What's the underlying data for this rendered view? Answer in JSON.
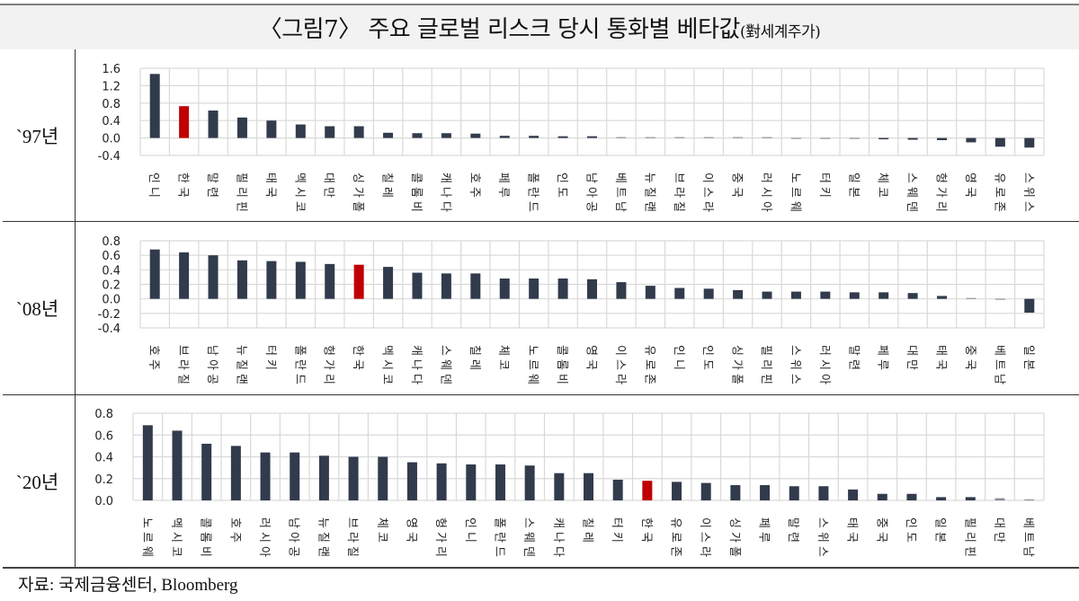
{
  "title": {
    "main": "〈그림7〉 주요 글로벌 리스크 당시 통화별 베타값",
    "sub": "(對세계주가)"
  },
  "colors": {
    "bar": "#323b4c",
    "highlight": "#c00000",
    "grid": "#d9d9d9",
    "axis_text": "#222222"
  },
  "source": "자료: 국제금융센터, Bloomberg",
  "chart_data": [
    {
      "type": "bar",
      "row_label": "`97년",
      "title": "1997",
      "ylim": [
        -0.4,
        1.6
      ],
      "yticks": [
        1.6,
        1.2,
        0.8,
        0.4,
        0.0,
        -0.4
      ],
      "ytick_labels": [
        "1.6",
        "1.2",
        "0.8",
        "0.4",
        "0.0",
        "-0.4"
      ],
      "grid": true,
      "highlight": "한국",
      "categories": [
        "인니",
        "한국",
        "말련",
        "필리핀",
        "태국",
        "멕시코",
        "대만",
        "싱가폴",
        "칠레",
        "콜롬비",
        "캐나다",
        "호주",
        "페루",
        "폴란드",
        "인도",
        "남아공",
        "베트남",
        "뉴질랜",
        "브라질",
        "이스라",
        "중국",
        "러시아",
        "노르웨",
        "터키",
        "일본",
        "체코",
        "스웨덴",
        "헝가리",
        "영국",
        "유로존",
        "스위스"
      ],
      "values": [
        1.47,
        0.73,
        0.63,
        0.47,
        0.4,
        0.31,
        0.27,
        0.27,
        0.12,
        0.11,
        0.11,
        0.1,
        0.05,
        0.05,
        0.04,
        0.04,
        0.02,
        0.02,
        0.0,
        0.0,
        0.0,
        0.0,
        -0.01,
        -0.01,
        -0.02,
        -0.03,
        -0.04,
        -0.05,
        -0.1,
        -0.2,
        -0.22
      ]
    },
    {
      "type": "bar",
      "row_label": "`08년",
      "title": "2008",
      "ylim": [
        -0.4,
        0.8
      ],
      "yticks": [
        0.8,
        0.6,
        0.4,
        0.2,
        0.0,
        -0.2,
        -0.4
      ],
      "ytick_labels": [
        "0.8",
        "0.6",
        "0.4",
        "0.2",
        "0.0",
        "-0.2",
        "-0.4"
      ],
      "grid": true,
      "highlight": "한국",
      "categories": [
        "호주",
        "브라질",
        "남아공",
        "뉴질랜",
        "터키",
        "폴란드",
        "헝가리",
        "한국",
        "멕시코",
        "캐나다",
        "스웨덴",
        "칠레",
        "체코",
        "노르웨",
        "콜롬비",
        "영국",
        "이스라",
        "유로존",
        "인니",
        "인도",
        "싱가폴",
        "필리핀",
        "스위스",
        "러시아",
        "말련",
        "페루",
        "대만",
        "태국",
        "중국",
        "베트남",
        "일본"
      ],
      "values": [
        0.68,
        0.64,
        0.6,
        0.53,
        0.52,
        0.51,
        0.48,
        0.47,
        0.44,
        0.36,
        0.35,
        0.35,
        0.28,
        0.28,
        0.28,
        0.27,
        0.23,
        0.18,
        0.15,
        0.14,
        0.12,
        0.1,
        0.1,
        0.1,
        0.09,
        0.09,
        0.08,
        0.04,
        0.0,
        -0.01,
        -0.19
      ]
    },
    {
      "type": "bar",
      "row_label": "`20년",
      "title": "2020",
      "ylim": [
        0.0,
        0.8
      ],
      "yticks": [
        0.8,
        0.6,
        0.4,
        0.2,
        0.0
      ],
      "ytick_labels": [
        "0.8",
        "0.6",
        "0.4",
        "0.2",
        "0.0"
      ],
      "grid": true,
      "highlight": "한국",
      "categories": [
        "노르웨",
        "멕시코",
        "콜롬비",
        "호주",
        "러시아",
        "남아공",
        "뉴질랜",
        "브라질",
        "체코",
        "영국",
        "헝가리",
        "인니",
        "폴란드",
        "스웨덴",
        "캐나다",
        "칠레",
        "터키",
        "한국",
        "유로존",
        "이스라",
        "싱가폴",
        "페루",
        "말련",
        "스위스",
        "태국",
        "중국",
        "인도",
        "일본",
        "필리핀",
        "대만",
        "베트남"
      ],
      "values": [
        0.69,
        0.64,
        0.52,
        0.5,
        0.44,
        0.44,
        0.41,
        0.4,
        0.4,
        0.35,
        0.34,
        0.33,
        0.33,
        0.32,
        0.25,
        0.25,
        0.19,
        0.18,
        0.17,
        0.16,
        0.14,
        0.14,
        0.13,
        0.13,
        0.1,
        0.06,
        0.06,
        0.03,
        0.03,
        0.02,
        0.005
      ]
    }
  ]
}
